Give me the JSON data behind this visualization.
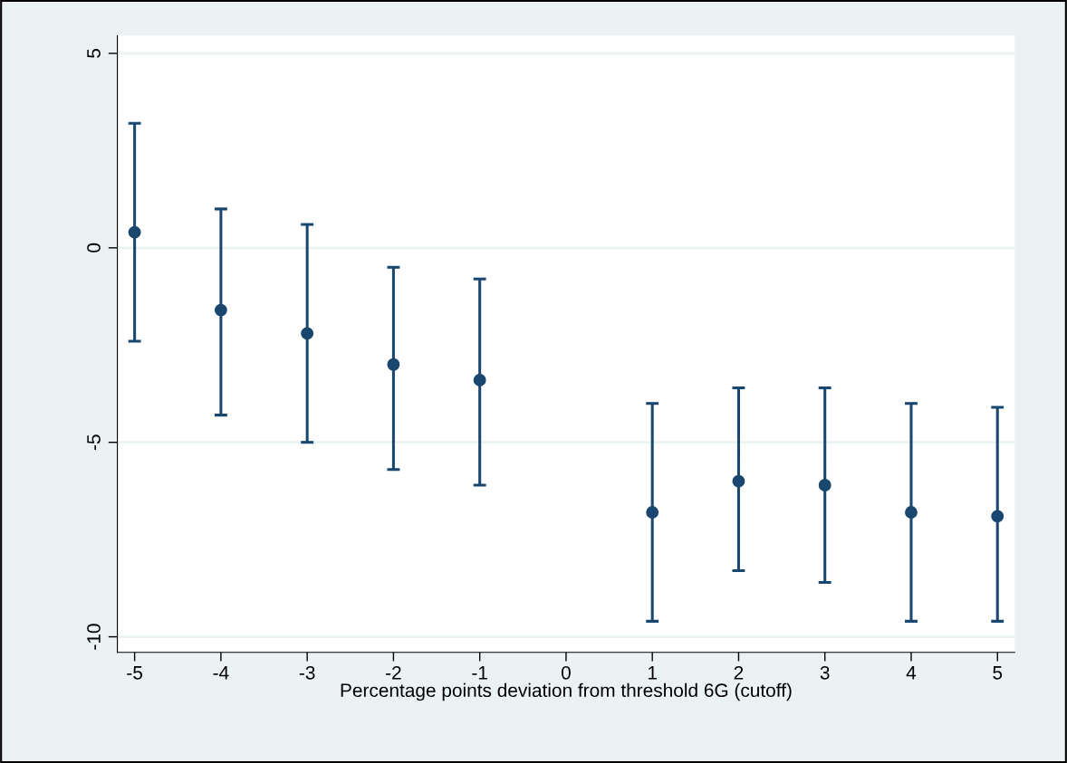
{
  "chart_data": {
    "type": "scatter",
    "xlabel": "Percentage points deviation from threshold 6G (cutoff)",
    "x": [
      -5,
      -4,
      -3,
      -2,
      -1,
      1,
      2,
      3,
      4,
      5
    ],
    "series": [
      {
        "color": "#1a476f",
        "values": [
          0.4,
          -1.6,
          -2.2,
          -3.0,
          -3.4,
          -6.8,
          -6.0,
          -6.1,
          -6.8,
          -6.9
        ],
        "errors": [
          [
            -2.4,
            3.2
          ],
          [
            -4.3,
            1.0
          ],
          [
            -5.0,
            0.6
          ],
          [
            -5.7,
            -0.5
          ],
          [
            -6.1,
            -0.8
          ],
          [
            -9.6,
            -4.0
          ],
          [
            -8.3,
            -3.6
          ],
          [
            -8.6,
            -3.6
          ],
          [
            -9.6,
            -4.0
          ],
          [
            -9.6,
            -4.1
          ]
        ]
      }
    ],
    "xlim": [
      -5.2,
      5.2
    ],
    "xticks": [
      -5,
      -4,
      -3,
      -2,
      -1,
      0,
      1,
      2,
      3,
      4,
      5
    ],
    "ylim": [
      -10.4,
      5.45
    ],
    "yticks": [
      {
        "value": -10,
        "label": "-10"
      },
      {
        "value": -5,
        "label": "-5"
      },
      0,
      5
    ],
    "grid": "y",
    "marker": "circle",
    "legend": false
  }
}
